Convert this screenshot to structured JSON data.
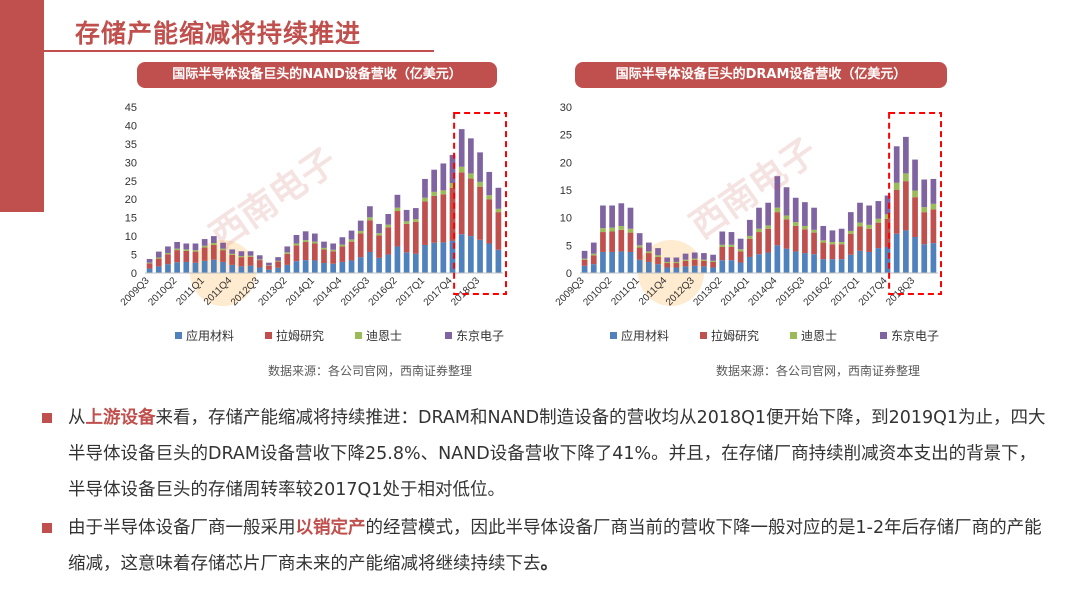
{
  "page_title": "存储产能缩减将持续推进",
  "watermark": "西南电子",
  "chart_data": [
    {
      "type": "bar",
      "stacked": true,
      "title": "国际半导体设备巨头的NAND设备营收（亿美元）",
      "ylim": [
        0,
        45
      ],
      "yticks": [
        "0",
        "5",
        "10",
        "15",
        "20",
        "25",
        "30",
        "35",
        "40",
        "45"
      ],
      "xtick_labels": [
        "2009Q3",
        "2010Q2",
        "2011Q1",
        "2011Q4",
        "2012Q3",
        "2013Q2",
        "2014Q1",
        "2014Q4",
        "2015Q3",
        "2016Q2",
        "2017Q1",
        "2017Q4",
        "2018Q3"
      ],
      "categories": [
        "2009Q3",
        "2009Q4",
        "2010Q1",
        "2010Q2",
        "2010Q3",
        "2010Q4",
        "2011Q1",
        "2011Q2",
        "2011Q3",
        "2011Q4",
        "2012Q1",
        "2012Q2",
        "2012Q3",
        "2012Q4",
        "2013Q1",
        "2013Q2",
        "2013Q3",
        "2013Q4",
        "2014Q1",
        "2014Q2",
        "2014Q3",
        "2014Q4",
        "2015Q1",
        "2015Q2",
        "2015Q3",
        "2015Q4",
        "2016Q1",
        "2016Q2",
        "2016Q3",
        "2016Q4",
        "2017Q1",
        "2017Q2",
        "2017Q3",
        "2017Q4",
        "2018Q1",
        "2018Q2",
        "2018Q3",
        "2018Q4",
        "2019Q1"
      ],
      "series": [
        {
          "name": "应用材料",
          "color": "#4F81BD",
          "values": [
            1.2,
            1.8,
            2.4,
            2.9,
            3.0,
            2.8,
            3.3,
            3.6,
            3.0,
            2.2,
            1.8,
            2.0,
            1.5,
            0.9,
            1.4,
            2.2,
            3.2,
            3.5,
            3.4,
            2.7,
            2.5,
            3.0,
            3.4,
            4.3,
            5.7,
            4.1,
            5.0,
            7.2,
            5.6,
            5.2,
            7.6,
            8.2,
            8.3,
            8.7,
            10.5,
            10.0,
            9.0,
            8.0,
            6.3
          ]
        },
        {
          "name": "拉姆研究",
          "color": "#C0504D",
          "values": [
            1.4,
            2.1,
            2.7,
            3.3,
            3.0,
            3.0,
            3.6,
            4.0,
            3.2,
            2.7,
            2.5,
            2.4,
            2.0,
            1.1,
            1.7,
            3.0,
            4.3,
            4.9,
            4.6,
            3.7,
            3.4,
            4.2,
            5.1,
            6.4,
            8.6,
            6.1,
            7.4,
            9.6,
            7.7,
            8.7,
            11.8,
            12.7,
            13.0,
            14.4,
            16.8,
            15.6,
            14.4,
            12.0,
            10.2
          ]
        },
        {
          "name": "迪恩士",
          "color": "#9BBB59",
          "values": [
            0.2,
            0.3,
            0.3,
            0.4,
            0.4,
            0.4,
            0.5,
            0.5,
            0.4,
            0.3,
            0.3,
            0.3,
            0.2,
            0.1,
            0.2,
            0.4,
            0.5,
            0.5,
            0.5,
            0.4,
            0.4,
            0.5,
            0.6,
            0.7,
            0.8,
            0.6,
            0.7,
            0.9,
            0.7,
            0.7,
            1.0,
            1.1,
            1.1,
            1.3,
            1.5,
            1.4,
            1.3,
            1.1,
            0.9
          ]
        },
        {
          "name": "东京电子",
          "color": "#8064A2",
          "values": [
            1.0,
            1.6,
            1.8,
            1.8,
            1.6,
            1.8,
            1.8,
            1.9,
            1.6,
            1.2,
            1.3,
            1.2,
            1.1,
            0.7,
            1.0,
            1.6,
            2.3,
            2.4,
            2.2,
            1.7,
            1.7,
            2.0,
            2.4,
            2.8,
            3.0,
            2.5,
            2.9,
            3.5,
            3.1,
            3.0,
            5.1,
            6.0,
            7.3,
            7.6,
            10.2,
            9.5,
            8.0,
            6.3,
            5.7
          ]
        }
      ],
      "highlight_range": [
        "2018Q1",
        "2019Q1"
      ],
      "source": "数据来源：各公司官网，西南证券整理"
    },
    {
      "type": "bar",
      "stacked": true,
      "title": "国际半导体设备巨头的DRAM设备营收（亿美元）",
      "ylim": [
        0,
        30
      ],
      "yticks": [
        "0",
        "5",
        "10",
        "15",
        "20",
        "25",
        "30"
      ],
      "xtick_labels": [
        "2009Q3",
        "2010Q2",
        "2011Q1",
        "2011Q4",
        "2012Q3",
        "2013Q2",
        "2014Q1",
        "2014Q4",
        "2015Q3",
        "2016Q2",
        "2017Q1",
        "2017Q4",
        "2018Q3"
      ],
      "categories": [
        "2009Q3",
        "2009Q4",
        "2010Q1",
        "2010Q2",
        "2010Q3",
        "2010Q4",
        "2011Q1",
        "2011Q2",
        "2011Q3",
        "2011Q4",
        "2012Q1",
        "2012Q2",
        "2012Q3",
        "2012Q4",
        "2013Q1",
        "2013Q2",
        "2013Q3",
        "2013Q4",
        "2014Q1",
        "2014Q2",
        "2014Q3",
        "2014Q4",
        "2015Q1",
        "2015Q2",
        "2015Q3",
        "2015Q4",
        "2016Q1",
        "2016Q2",
        "2016Q3",
        "2016Q4",
        "2017Q1",
        "2017Q2",
        "2017Q3",
        "2017Q4",
        "2018Q1",
        "2018Q2",
        "2018Q3",
        "2018Q4",
        "2019Q1"
      ],
      "series": [
        {
          "name": "应用材料",
          "color": "#4F81BD",
          "values": [
            1.3,
            1.6,
            3.8,
            3.8,
            3.9,
            3.8,
            2.4,
            2.0,
            1.6,
            1.0,
            1.0,
            1.2,
            1.3,
            1.2,
            1.0,
            2.3,
            2.3,
            1.9,
            2.9,
            3.4,
            3.7,
            5.0,
            4.4,
            3.9,
            3.6,
            3.4,
            2.5,
            2.5,
            2.5,
            3.3,
            4.0,
            3.8,
            4.5,
            4.7,
            7.1,
            7.7,
            6.5,
            5.2,
            5.4
          ]
        },
        {
          "name": "拉姆研究",
          "color": "#C0504D",
          "values": [
            1.1,
            1.6,
            3.6,
            3.7,
            3.9,
            3.5,
            2.2,
            1.6,
            1.3,
            0.8,
            0.8,
            1.0,
            1.1,
            1.0,
            1.0,
            2.4,
            2.4,
            2.0,
            3.3,
            4.0,
            4.3,
            6.0,
            5.3,
            4.6,
            4.3,
            3.9,
            3.0,
            2.7,
            2.7,
            3.8,
            4.4,
            4.2,
            4.6,
            5.1,
            7.9,
            8.9,
            7.2,
            5.8,
            6.1
          ]
        },
        {
          "name": "迪恩士",
          "color": "#9BBB59",
          "values": [
            0.2,
            0.3,
            0.7,
            0.7,
            0.7,
            0.7,
            0.4,
            0.3,
            0.3,
            0.2,
            0.2,
            0.2,
            0.2,
            0.2,
            0.2,
            0.4,
            0.4,
            0.4,
            0.5,
            0.6,
            0.6,
            0.8,
            0.7,
            0.7,
            0.6,
            0.5,
            0.4,
            0.4,
            0.4,
            0.5,
            0.7,
            0.7,
            0.7,
            0.8,
            1.3,
            1.4,
            1.2,
            0.9,
            1.0
          ]
        },
        {
          "name": "东京电子",
          "color": "#8064A2",
          "values": [
            1.4,
            2.0,
            4.1,
            4.0,
            4.1,
            3.8,
            2.2,
            1.6,
            1.3,
            0.8,
            0.8,
            1.1,
            1.1,
            1.2,
            1.1,
            2.4,
            2.3,
            1.9,
            2.9,
            3.8,
            4.1,
            5.7,
            5.1,
            4.4,
            4.3,
            4.0,
            2.6,
            2.1,
            2.4,
            3.4,
            3.6,
            3.5,
            3.2,
            3.4,
            6.6,
            6.6,
            5.6,
            5.0,
            4.5
          ]
        }
      ],
      "highlight_range": [
        "2018Q1",
        "2019Q1"
      ],
      "source": "数据来源：各公司官网，西南证券整理"
    }
  ],
  "bullets": [
    {
      "segments": [
        {
          "text": "从",
          "style": "normal"
        },
        {
          "text": "上游设备",
          "style": "hl"
        },
        {
          "text": "来看，存储产能缩减将持续推进：DRAM和NAND制造设备的营收均从2018Q1便开始下降，到2019Q1为止，四大半导体设备巨头的DRAM设备营收下降25.8%、NAND设备营收下降了41%。并且，在存储厂商持续削减资本支出的背景下，半导体设备巨头的存储周转率较2017Q1处于相对低位。",
          "style": "normal"
        }
      ]
    },
    {
      "segments": [
        {
          "text": "由于半导体设备厂商一般采用",
          "style": "normal"
        },
        {
          "text": "以销定产",
          "style": "hl"
        },
        {
          "text": "的经营模式，因此半导体设备厂商当前的营收下降一般对应的是1-2年后存储厂商的产能缩减，这意味着存储芯片厂商未来的产能缩减将继续持续下去",
          "style": "normal"
        },
        {
          "text": "。",
          "style": "b"
        }
      ]
    }
  ]
}
